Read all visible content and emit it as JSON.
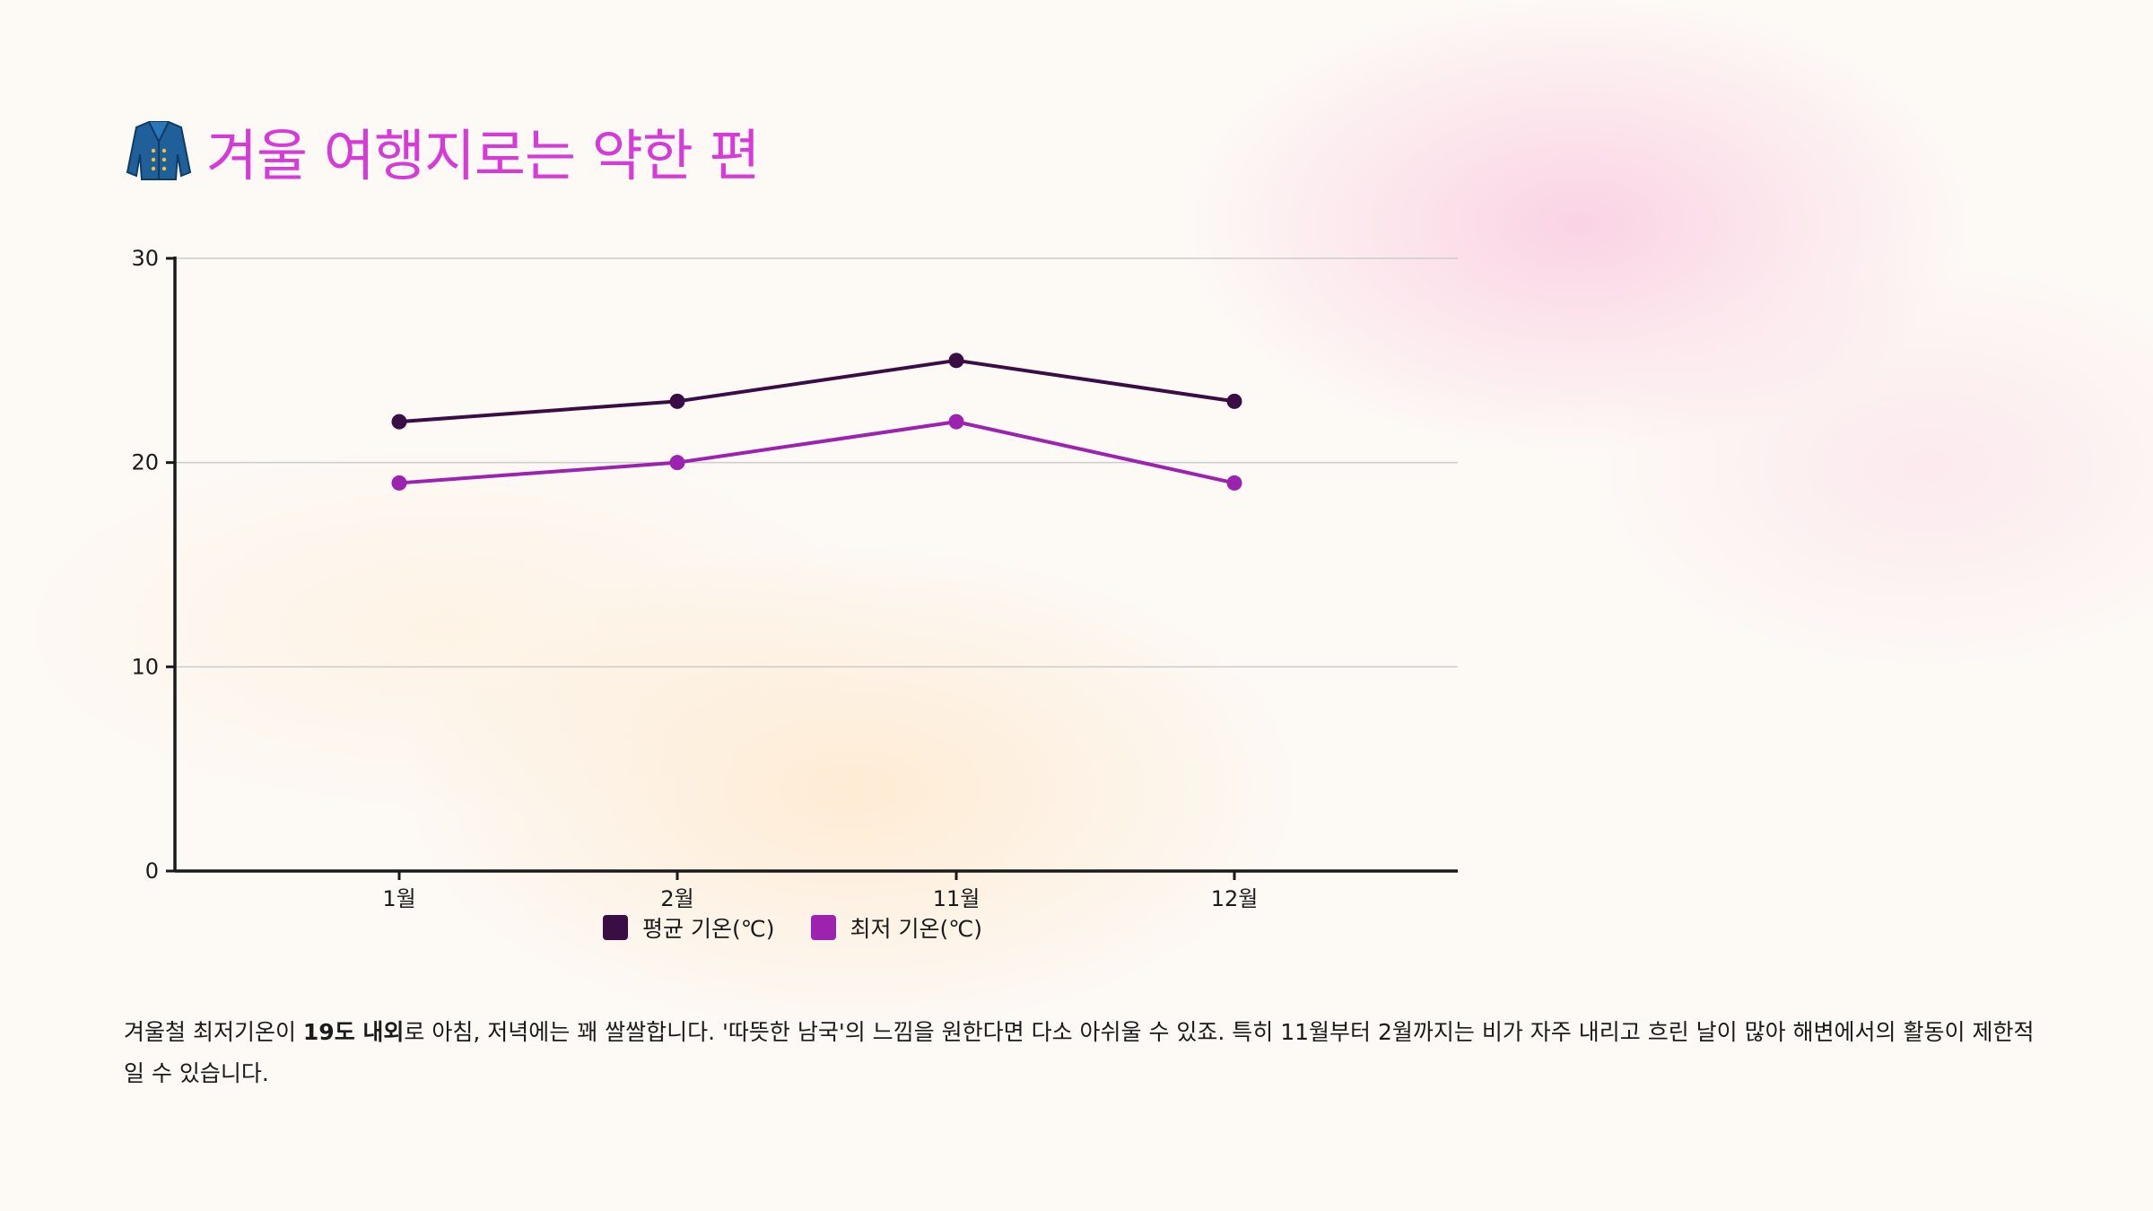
{
  "header": {
    "title": "겨울 여행지로는 약한 편",
    "icon": "coat-icon"
  },
  "description": {
    "before": "겨울철 최저기온이 ",
    "bold": "19도 내외",
    "after": "로 아침, 저녁에는 꽤 쌀쌀합니다. '따뜻한 남국'의 느낌을 원한다면 다소 아쉬울 수 있죠. 특히 11월부터 2월까지는 비가 자주 내리고 흐린 날이 많아 해변에서의 활동이 제한적일 수 있습니다."
  },
  "colors": {
    "title": "#d63ad8",
    "series_avg": "#3b0d45",
    "series_min": "#9c22b0",
    "grid": "#cccccc",
    "axis": "#1a1a1a"
  },
  "chart_data": {
    "type": "line",
    "categories": [
      "1월",
      "2월",
      "11월",
      "12월"
    ],
    "series": [
      {
        "name": "평균 기온(℃)",
        "values": [
          22,
          23,
          25,
          23
        ],
        "color": "#3b0d45"
      },
      {
        "name": "최저 기온(℃)",
        "values": [
          19,
          20,
          22,
          19
        ],
        "color": "#9c22b0"
      }
    ],
    "ylim": [
      0,
      30
    ],
    "yticks": [
      0,
      10,
      20,
      30
    ],
    "grid": true,
    "legend_position": "bottom-center",
    "title": "",
    "xlabel": "",
    "ylabel": ""
  }
}
